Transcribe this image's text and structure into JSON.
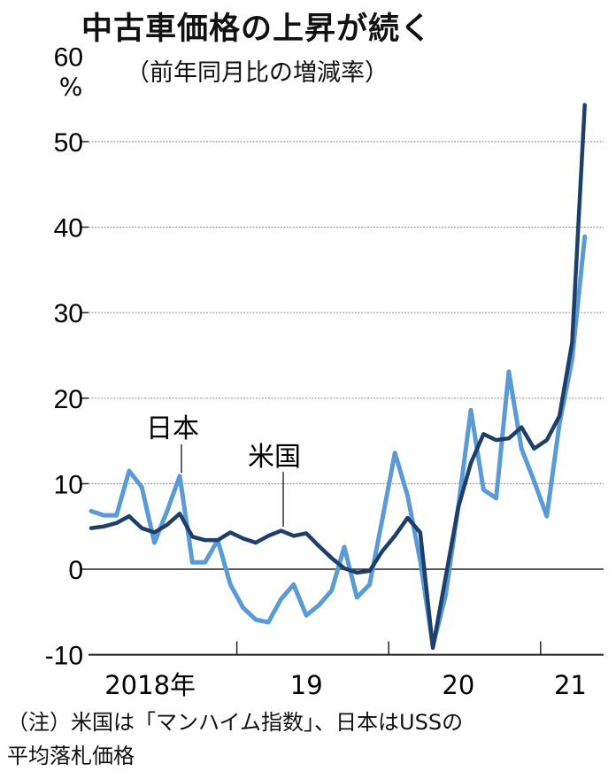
{
  "chart_data": {
    "type": "line",
    "title": "中古車価格の上昇が続く",
    "subtitle": "（前年同月比の増減率）",
    "ylabel": "%",
    "ylim": [
      -10,
      60
    ],
    "yticks": [
      -10,
      0,
      10,
      20,
      30,
      40,
      50,
      60
    ],
    "ytick_labels": [
      "-10",
      "0",
      "10",
      "20",
      "30",
      "40",
      "50",
      "60"
    ],
    "grid": "horizontal dotted",
    "x_period": "monthly, 2018-01 to 2021-04",
    "xtick_labels": [
      "2018年",
      "19",
      "20",
      "21"
    ],
    "series": [
      {
        "name": "日本",
        "color": "#5b9bd5",
        "values": [
          6.8,
          6.3,
          6.3,
          11.5,
          9.6,
          3.1,
          6.8,
          10.9,
          0.8,
          0.8,
          3.4,
          -1.8,
          -4.5,
          -5.9,
          -6.2,
          -3.5,
          -1.8,
          -5.4,
          -4.2,
          -2.5,
          2.6,
          -3.3,
          -1.8,
          5.8,
          13.6,
          8.6,
          1.0,
          -9.0,
          -3.1,
          7.2,
          18.6,
          9.3,
          8.3,
          23.1,
          14.1,
          10.3,
          6.2,
          17.0,
          24.5,
          38.9
        ]
      },
      {
        "name": "米国",
        "color": "#1f3f6b",
        "values": [
          4.8,
          5.0,
          5.4,
          6.2,
          4.8,
          4.3,
          5.2,
          6.5,
          3.8,
          3.4,
          3.4,
          4.3,
          3.6,
          3.1,
          3.9,
          4.5,
          3.9,
          4.2,
          2.7,
          1.3,
          0.1,
          -0.4,
          -0.2,
          2.1,
          3.9,
          6.0,
          4.3,
          -9.2,
          -1.0,
          7.2,
          12.4,
          15.8,
          15.1,
          15.3,
          16.6,
          14.1,
          15.1,
          17.9,
          26.5,
          54.3
        ]
      }
    ]
  },
  "note": {
    "line1": "（注）米国は「マンハイム指数」、日本はUSSの",
    "line2": "平均落札価格"
  }
}
